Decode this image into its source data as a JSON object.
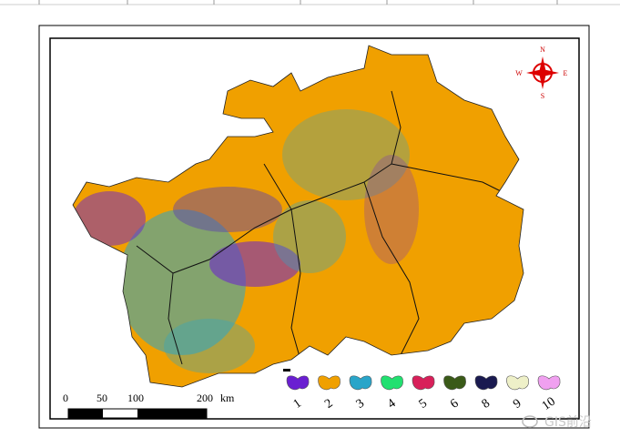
{
  "compass": {
    "north": "N",
    "south": "S",
    "west": "W",
    "east": "E"
  },
  "scale_bar": {
    "labels": [
      "0",
      "50",
      "100",
      "200"
    ],
    "unit": "km"
  },
  "legend": {
    "items": [
      {
        "label": "1",
        "color": "#6a1fd1"
      },
      {
        "label": "2",
        "color": "#f0a000"
      },
      {
        "label": "3",
        "color": "#2aa5c9"
      },
      {
        "label": "4",
        "color": "#22e070"
      },
      {
        "label": "5",
        "color": "#d8205a"
      },
      {
        "label": "6",
        "color": "#3a5a18"
      },
      {
        "label": "8",
        "color": "#1a1a50"
      },
      {
        "label": "9",
        "color": "#eef0c8"
      },
      {
        "label": "10",
        "color": "#f0a0f0"
      }
    ]
  },
  "watermark": "GIS前沿"
}
